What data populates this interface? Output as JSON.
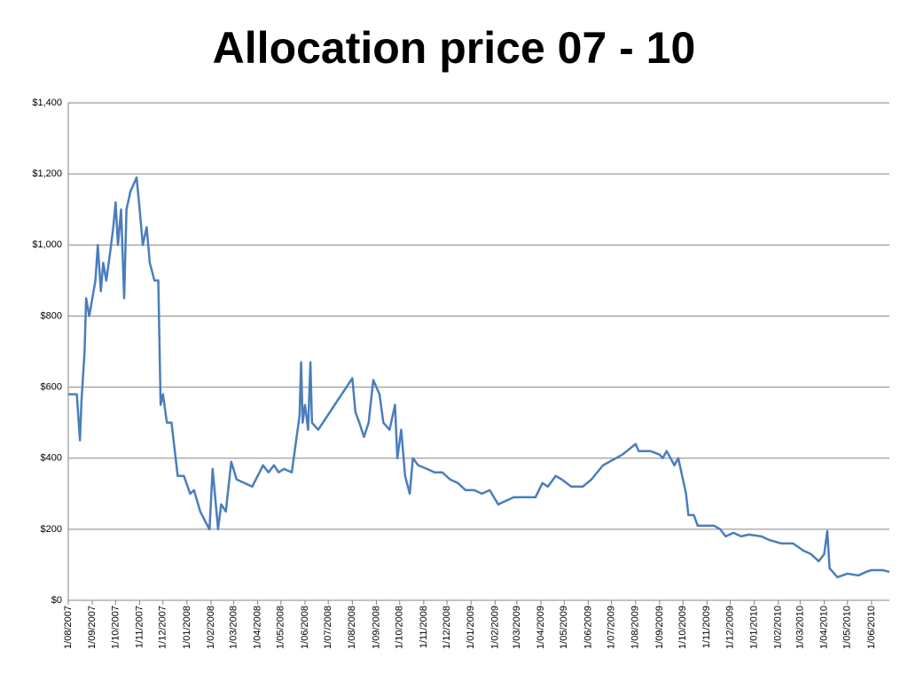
{
  "chart_data": {
    "type": "line",
    "title": "Allocation price 07 - 10",
    "x": [
      "1/08/2007",
      "12/08/2007",
      "16/08/2007",
      "18/08/2007",
      "22/08/2007",
      "24/08/2007",
      "28/08/2007",
      "1/09/2007",
      "5/09/2007",
      "8/09/2007",
      "12/09/2007",
      "15/09/2007",
      "19/09/2007",
      "24/09/2007",
      "28/09/2007",
      "1/10/2007",
      "4/10/2007",
      "8/10/2007",
      "12/10/2007",
      "15/10/2007",
      "20/10/2007",
      "28/10/2007",
      "1/11/2007",
      "5/11/2007",
      "10/11/2007",
      "14/11/2007",
      "20/11/2007",
      "25/11/2007",
      "28/11/2007",
      "1/12/2007",
      "6/12/2007",
      "12/12/2007",
      "20/12/2007",
      "28/12/2007",
      "5/01/2008",
      "10/01/2008",
      "18/01/2008",
      "25/01/2008",
      "30/01/2008",
      "3/02/2008",
      "10/02/2008",
      "14/02/2008",
      "20/02/2008",
      "27/02/2008",
      "5/03/2008",
      "15/03/2008",
      "25/03/2008",
      "8/04/2008",
      "15/04/2008",
      "22/04/2008",
      "28/04/2008",
      "5/05/2008",
      "15/05/2008",
      "25/05/2008",
      "27/05/2008",
      "29/05/2008",
      "1/06/2008",
      "5/06/2008",
      "8/06/2008",
      "10/06/2008",
      "18/06/2008",
      "1/08/2008",
      "5/08/2008",
      "10/08/2008",
      "16/08/2008",
      "22/08/2008",
      "28/08/2008",
      "5/09/2008",
      "10/09/2008",
      "18/09/2008",
      "25/09/2008",
      "28/09/2008",
      "3/10/2008",
      "8/10/2008",
      "14/10/2008",
      "18/10/2008",
      "25/10/2008",
      "5/11/2008",
      "15/11/2008",
      "25/11/2008",
      "5/12/2008",
      "15/12/2008",
      "25/12/2008",
      "5/01/2009",
      "15/01/2009",
      "25/01/2009",
      "5/02/2009",
      "15/02/2009",
      "25/02/2009",
      "10/03/2009",
      "25/03/2009",
      "3/04/2009",
      "10/04/2009",
      "20/04/2009",
      "28/04/2009",
      "10/05/2009",
      "25/05/2009",
      "5/06/2009",
      "20/06/2009",
      "15/07/2009",
      "1/08/2009",
      "5/08/2009",
      "20/08/2009",
      "1/09/2009",
      "5/09/2009",
      "10/09/2009",
      "20/09/2009",
      "25/09/2009",
      "5/10/2009",
      "8/10/2009",
      "15/10/2009",
      "20/10/2009",
      "10/11/2009",
      "18/11/2009",
      "25/11/2009",
      "5/12/2009",
      "15/12/2009",
      "25/12/2009",
      "10/01/2010",
      "20/01/2010",
      "5/02/2010",
      "20/02/2010",
      "5/03/2010",
      "15/03/2010",
      "25/03/2010",
      "1/04/2010",
      "5/04/2010",
      "8/04/2010",
      "18/04/2010",
      "1/05/2010",
      "15/05/2010",
      "25/05/2010",
      "1/06/2010",
      "15/06/2010",
      "24/06/2010"
    ],
    "series": [
      {
        "name": "Allocation price",
        "color": "#4a7ebb",
        "values": [
          580,
          580,
          450,
          560,
          700,
          850,
          800,
          850,
          900,
          1000,
          870,
          950,
          900,
          980,
          1050,
          1120,
          1000,
          1100,
          850,
          1100,
          1150,
          1190,
          1100,
          1000,
          1050,
          950,
          900,
          900,
          550,
          580,
          500,
          500,
          350,
          350,
          300,
          310,
          250,
          220,
          200,
          370,
          200,
          270,
          250,
          390,
          340,
          330,
          320,
          380,
          360,
          380,
          360,
          370,
          360,
          520,
          670,
          500,
          550,
          480,
          670,
          500,
          480,
          625,
          530,
          500,
          460,
          500,
          620,
          580,
          500,
          480,
          550,
          400,
          480,
          350,
          300,
          400,
          380,
          370,
          360,
          360,
          340,
          330,
          310,
          310,
          300,
          310,
          270,
          280,
          290,
          290,
          290,
          330,
          320,
          350,
          340,
          320,
          320,
          340,
          380,
          410,
          440,
          420,
          420,
          410,
          400,
          420,
          380,
          400,
          300,
          240,
          240,
          210,
          210,
          200,
          180,
          190,
          180,
          185,
          180,
          170,
          160,
          160,
          140,
          130,
          110,
          130,
          195,
          90,
          65,
          75,
          70,
          80,
          85,
          85,
          80
        ]
      }
    ],
    "xlim": [
      "1/08/2007",
      "24/06/2010"
    ],
    "xticks": [
      "1/08/2007",
      "1/09/2007",
      "1/10/2007",
      "1/11/2007",
      "1/12/2007",
      "1/01/2008",
      "1/02/2008",
      "1/03/2008",
      "1/04/2008",
      "1/05/2008",
      "1/06/2008",
      "1/07/2008",
      "1/08/2008",
      "1/09/2008",
      "1/10/2008",
      "1/11/2008",
      "1/12/2008",
      "1/01/2009",
      "1/02/2009",
      "1/03/2009",
      "1/04/2009",
      "1/05/2009",
      "1/06/2009",
      "1/07/2009",
      "1/08/2009",
      "1/09/2009",
      "1/10/2009",
      "1/11/2009",
      "1/12/2009",
      "1/01/2010",
      "1/02/2010",
      "1/03/2010",
      "1/04/2010",
      "1/05/2010",
      "1/06/2010"
    ],
    "ylim": [
      0,
      1400
    ],
    "yticks": [
      {
        "value": 0,
        "label": "$0"
      },
      {
        "value": 200,
        "label": "$200"
      },
      {
        "value": 400,
        "label": "$400"
      },
      {
        "value": 600,
        "label": "$600"
      },
      {
        "value": 800,
        "label": "$800"
      },
      {
        "value": 1000,
        "label": "$1,000"
      },
      {
        "value": 1200,
        "label": "$1,200"
      },
      {
        "value": 1400,
        "label": "$1,400"
      }
    ],
    "grid": true
  }
}
